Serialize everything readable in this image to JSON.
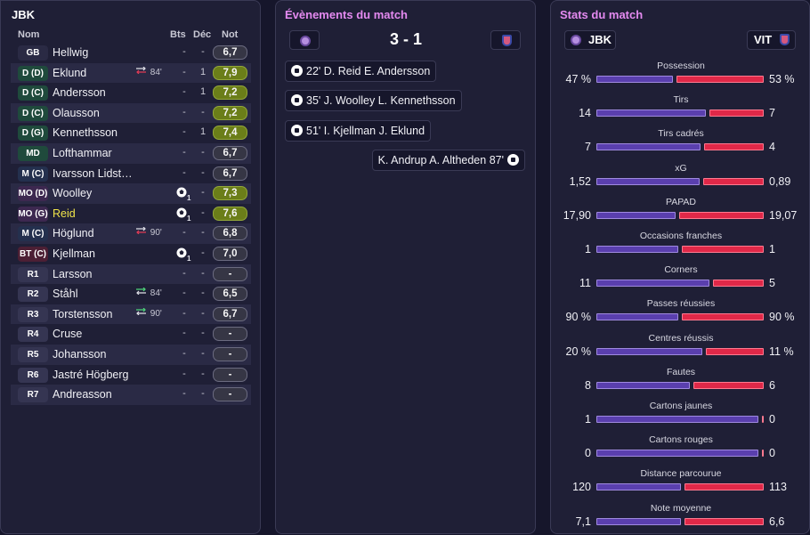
{
  "lineup": {
    "title": "JBK",
    "headers": {
      "name": "Nom",
      "goals": "Bts",
      "decisive": "Déc",
      "rating": "Not"
    },
    "players": [
      {
        "pos": "GB",
        "cls": "gk",
        "name": "Hellwig",
        "event": "",
        "bts": "-",
        "dec": "-",
        "note": "6,7",
        "good": false
      },
      {
        "pos": "D (D)",
        "cls": "def",
        "name": "Eklund",
        "event": "84'",
        "sub": "out",
        "bts": "-",
        "dec": "1",
        "note": "7,9",
        "good": true
      },
      {
        "pos": "D (C)",
        "cls": "def",
        "name": "Andersson",
        "event": "",
        "bts": "-",
        "dec": "1",
        "note": "7,2",
        "good": true
      },
      {
        "pos": "D (C)",
        "cls": "def",
        "name": "Olausson",
        "event": "",
        "bts": "-",
        "dec": "-",
        "note": "7,2",
        "good": true
      },
      {
        "pos": "D (G)",
        "cls": "def",
        "name": "Kennethsson",
        "event": "",
        "bts": "-",
        "dec": "1",
        "note": "7,4",
        "good": true
      },
      {
        "pos": "MD",
        "cls": "def",
        "name": "Lofthammar",
        "event": "",
        "bts": "-",
        "dec": "-",
        "note": "6,7",
        "good": false
      },
      {
        "pos": "M (C)",
        "cls": "mid",
        "name": "Ivarsson Lidst…",
        "event": "",
        "bts": "-",
        "dec": "-",
        "note": "6,7",
        "good": false
      },
      {
        "pos": "MO (D)",
        "cls": "am",
        "name": "Woolley",
        "event": "",
        "goal": "1",
        "bts": "",
        "dec": "-",
        "note": "7,3",
        "good": true
      },
      {
        "pos": "MO (G)",
        "cls": "am",
        "name": "Reid",
        "highlight": true,
        "event": "",
        "goal": "1",
        "bts": "",
        "dec": "-",
        "note": "7,6",
        "good": true
      },
      {
        "pos": "M (C)",
        "cls": "mid",
        "name": "Höglund",
        "event": "90'",
        "sub": "out",
        "bts": "-",
        "dec": "-",
        "note": "6,8",
        "good": false
      },
      {
        "pos": "BT (C)",
        "cls": "fw",
        "name": "Kjellman",
        "event": "",
        "goal": "1",
        "bts": "",
        "dec": "-",
        "note": "7,0",
        "good": false
      },
      {
        "pos": "R1",
        "cls": "sub",
        "name": "Larsson",
        "event": "",
        "bts": "-",
        "dec": "-",
        "note": "-",
        "good": false
      },
      {
        "pos": "R2",
        "cls": "sub",
        "name": "Ståhl",
        "event": "84'",
        "sub": "in",
        "bts": "-",
        "dec": "-",
        "note": "6,5",
        "good": false
      },
      {
        "pos": "R3",
        "cls": "sub",
        "name": "Torstensson",
        "event": "90'",
        "sub": "in",
        "bts": "-",
        "dec": "-",
        "note": "6,7",
        "good": false
      },
      {
        "pos": "R4",
        "cls": "sub",
        "name": "Cruse",
        "event": "",
        "bts": "-",
        "dec": "-",
        "note": "-",
        "good": false
      },
      {
        "pos": "R5",
        "cls": "sub",
        "name": "Johansson",
        "event": "",
        "bts": "-",
        "dec": "-",
        "note": "-",
        "good": false
      },
      {
        "pos": "R6",
        "cls": "sub",
        "name": "Jastré Högberg",
        "event": "",
        "bts": "-",
        "dec": "-",
        "note": "-",
        "good": false
      },
      {
        "pos": "R7",
        "cls": "sub",
        "name": "Andreasson",
        "event": "",
        "bts": "-",
        "dec": "-",
        "note": "-",
        "good": false
      }
    ]
  },
  "events": {
    "title": "Évènements du match",
    "score": "3 - 1",
    "items": [
      {
        "side": "home",
        "minute": "22'",
        "scorer": "D. Reid",
        "assist": "E. Andersson"
      },
      {
        "side": "home",
        "minute": "35'",
        "scorer": "J. Woolley",
        "assist": "L. Kennethsson"
      },
      {
        "side": "home",
        "minute": "51'",
        "scorer": "I. Kjellman",
        "assist": "J. Eklund"
      },
      {
        "side": "away",
        "minute": "87'",
        "scorer": "K. Andrup",
        "assist": "A. Altheden"
      }
    ]
  },
  "stats": {
    "title": "Stats du match",
    "home_team": "JBK",
    "away_team": "VIT",
    "colors": {
      "home": "#5a3fae",
      "away": "#e02848"
    },
    "items": [
      {
        "label": "Possession",
        "home": "47 %",
        "away": "53 %",
        "h": 47,
        "a": 53
      },
      {
        "label": "Tirs",
        "home": "14",
        "away": "7",
        "h": 14,
        "a": 7
      },
      {
        "label": "Tirs cadrés",
        "home": "7",
        "away": "4",
        "h": 7,
        "a": 4
      },
      {
        "label": "xG",
        "home": "1,52",
        "away": "0,89",
        "h": 1.52,
        "a": 0.89
      },
      {
        "label": "PAPAD",
        "home": "17,90",
        "away": "19,07",
        "h": 17.9,
        "a": 19.07
      },
      {
        "label": "Occasions franches",
        "home": "1",
        "away": "1",
        "h": 1,
        "a": 1
      },
      {
        "label": "Corners",
        "home": "11",
        "away": "5",
        "h": 11,
        "a": 5
      },
      {
        "label": "Passes réussies",
        "home": "90 %",
        "away": "90 %",
        "h": 90,
        "a": 90
      },
      {
        "label": "Centres réussis",
        "home": "20 %",
        "away": "11 %",
        "h": 20,
        "a": 11
      },
      {
        "label": "Fautes",
        "home": "8",
        "away": "6",
        "h": 8,
        "a": 6
      },
      {
        "label": "Cartons jaunes",
        "home": "1",
        "away": "0",
        "h": 1,
        "a": 0
      },
      {
        "label": "Cartons rouges",
        "home": "0",
        "away": "0",
        "h": 0,
        "a": 0
      },
      {
        "label": "Distance parcourue",
        "home": "120",
        "away": "113",
        "h": 120,
        "a": 113
      },
      {
        "label": "Note moyenne",
        "home": "7,1",
        "away": "6,6",
        "h": 7.1,
        "a": 6.6
      }
    ]
  }
}
